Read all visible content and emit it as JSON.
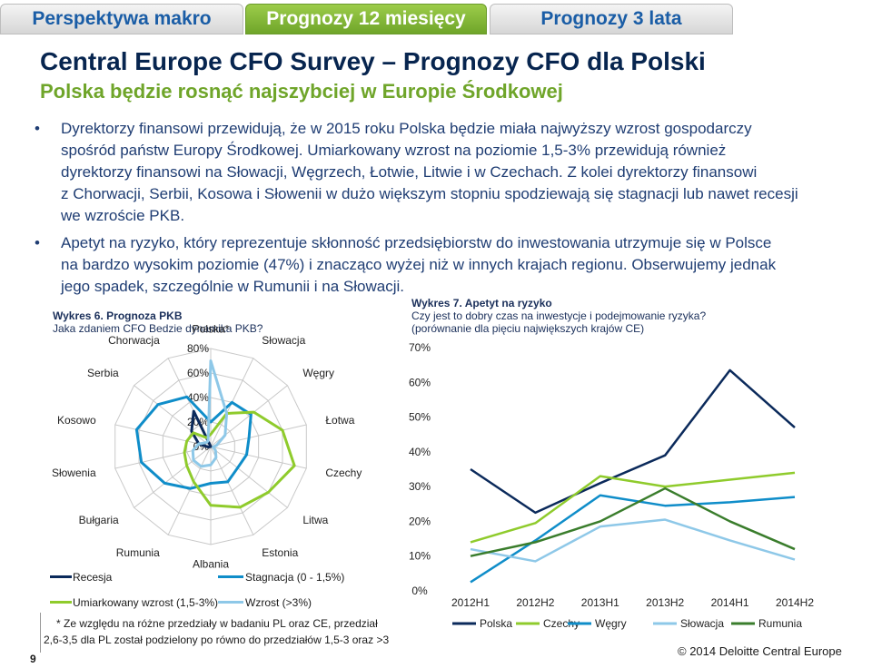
{
  "tabs": [
    {
      "label": "Perspektywa makro",
      "active": false
    },
    {
      "label": "Prognozy 12 miesięcy",
      "active": true
    },
    {
      "label": "Prognozy 3 lata",
      "active": false
    }
  ],
  "header": {
    "title": "Central Europe CFO Survey – Prognozy CFO dla Polski",
    "subtitle": "Polska będzie rosnąć najszybciej w Europie Środkowej"
  },
  "bullets": [
    {
      "lines": [
        "Dyrektorzy finansowi przewidują, że w 2015 roku Polska będzie miała najwyższy wzrost gospodarczy",
        "spośród państw Europy Środkowej. Umiarkowany wzrost na poziomie 1,5-3% przewidują również",
        "dyrektorzy finansowi na Słowacji, Węgrzech, Łotwie, Litwie i w Czechach. Z kolei dyrektorzy finansowi",
        "z Chorwacji, Serbii, Kosowa i Słowenii w dużo większym stopniu spodziewają się stagnacji lub nawet recesji",
        "we wzroście PKB."
      ]
    },
    {
      "lines": [
        "Apetyt na ryzyko, który reprezentuje skłonność przedsiębiorstw do inwestowania utrzymuje się w Polsce",
        "na bardzo wysokim poziomie (47%) i znacząco wyżej niż w innych krajach regionu. Obserwujemy jednak",
        "jego spadek, szczególnie  w Rumunii i na Słowacji."
      ]
    }
  ],
  "colors": {
    "recesja": "#0b2a5b",
    "stagnacja": "#0f8dc9",
    "umiarkowany": "#8fcb2c",
    "wzrost": "#8ec8e8",
    "rumunia": "#3a7d2c",
    "tab_active": "#86bc25",
    "title": "#07254f"
  },
  "left_chart": {
    "heading": "Wykres 6. Prognoza PKB",
    "question": "Jaka zdaniem CFO Bedzie dynamika PKB?",
    "footnote": [
      "* Ze względu na różne przedziały w badaniu PL oraz CE, przedział",
      "2,6-3,5 dla PL został podzielony po równo do przedziałów 1,5-3 oraz >3"
    ],
    "legend": [
      "Recesja",
      "Stagnacja (0 - 1,5%)",
      "Umiarkowany wzrost (1,5-3%)",
      "Wzrost (>3%)"
    ]
  },
  "right_chart": {
    "heading": "Wykres 7. Apetyt na ryzyko",
    "question": "Czy jest to dobry czas na inwestycje i podejmowanie ryzyka?",
    "note": "(porównanie dla pięciu największych krajów CE)"
  },
  "footer": {
    "page": "9",
    "copyright": "© 2014 Deloitte Central Europe"
  },
  "chart_data": [
    {
      "type": "radar",
      "title": "Wykres 6. Prognoza PKB",
      "axes": [
        "Polska*",
        "Słowacja",
        "Węgry",
        "Łotwa",
        "Czechy",
        "Litwa",
        "Estonia",
        "Albania",
        "Rumunia",
        "Bułgaria",
        "Słowenia",
        "Kosowo",
        "Serbia",
        "Chorwacja"
      ],
      "ticks": [
        "0%",
        "20%",
        "40%",
        "60%",
        "80%"
      ],
      "ylim": [
        0,
        80
      ],
      "series": [
        {
          "name": "Recesja",
          "values": [
            0,
            0,
            0,
            0,
            0,
            0,
            0,
            0,
            0,
            0,
            2,
            10,
            20,
            32
          ]
        },
        {
          "name": "Stagnacja (0 - 1,5%)",
          "values": [
            20,
            40,
            42,
            32,
            30,
            28,
            32,
            30,
            38,
            48,
            58,
            62,
            55,
            45
          ]
        },
        {
          "name": "Umiarkowany wzrost (1,5-3%)",
          "values": [
            10,
            30,
            45,
            60,
            70,
            60,
            55,
            48,
            32,
            25,
            22,
            20,
            18,
            8
          ]
        },
        {
          "name": "Wzrost (>3%)",
          "values": [
            70,
            30,
            15,
            5,
            2,
            5,
            10,
            15,
            18,
            18,
            15,
            10,
            5,
            5
          ]
        }
      ]
    },
    {
      "type": "line",
      "title": "Wykres 7. Apetyt na ryzyko",
      "categories": [
        "2012H1",
        "2012H2",
        "2013H1",
        "2013H2",
        "2014H1",
        "2014H2"
      ],
      "ylim": [
        0,
        70
      ],
      "yticks": [
        "0%",
        "10%",
        "20%",
        "30%",
        "40%",
        "50%",
        "60%",
        "70%"
      ],
      "series": [
        {
          "name": "Polska",
          "values": [
            35,
            22.5,
            31,
            39,
            63.5,
            47
          ]
        },
        {
          "name": "Czechy",
          "values": [
            14,
            19.5,
            33,
            30,
            32,
            34
          ]
        },
        {
          "name": "Węgry",
          "values": [
            2.5,
            14.5,
            27.5,
            24.5,
            25.5,
            27
          ]
        },
        {
          "name": "Słowacja",
          "values": [
            12,
            8.5,
            18.5,
            20.5,
            14.5,
            9
          ]
        },
        {
          "name": "Rumunia",
          "values": [
            10,
            14,
            20,
            29.5,
            20,
            12
          ]
        }
      ]
    }
  ]
}
